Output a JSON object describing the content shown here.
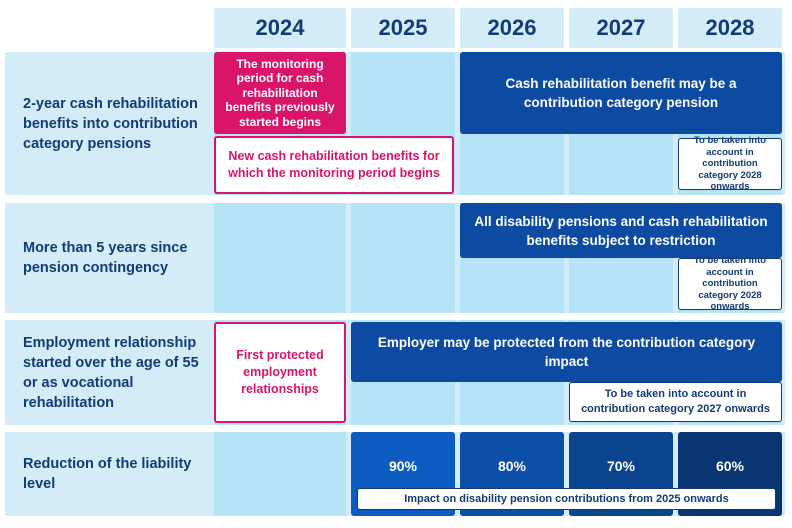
{
  "years": [
    "2024",
    "2025",
    "2026",
    "2027",
    "2028"
  ],
  "rows": [
    {
      "label": "2-year cash rehabilitation benefits into contribution category pensions",
      "items": {
        "magenta_fill": "The monitoring period for cash rehabilitation benefits previously started begins",
        "magenta_outline": "New cash rehabilitation benefits for which the monitoring period begins",
        "navy": "Cash rehabilitation benefit may be a contribution category pension",
        "note": "To be taken into account in contribution category 2028 onwards"
      }
    },
    {
      "label": "More than 5 years since pension contingency",
      "items": {
        "navy": "All disability pensions and cash rehabilitation benefits subject to restriction",
        "note": "To be taken into account in contribution category 2028 onwards"
      }
    },
    {
      "label": "Employment relationship started over the age of 55 or as vocational rehabilitation",
      "items": {
        "magenta_outline": "First protected employment relationships",
        "navy": "Employer may be protected from the contribution category impact",
        "note": "To be taken into account in contribution category 2027 onwards"
      }
    },
    {
      "label": "Reduction of the liability level",
      "levels": [
        {
          "year": "2025",
          "value": "90%",
          "color": "#0d5cc2"
        },
        {
          "year": "2026",
          "value": "80%",
          "color": "#0c4fa8"
        },
        {
          "year": "2027",
          "value": "70%",
          "color": "#0b4590"
        },
        {
          "year": "2028",
          "value": "60%",
          "color": "#0a3573"
        }
      ],
      "note": "Impact on disability pension contributions from 2025 onwards"
    }
  ],
  "colors": {
    "navy": "#0d4aa1",
    "magenta": "#d9156b",
    "light_blue": "#d3ecf8",
    "mid_blue": "#b7e3f7",
    "text_dark": "#123b78"
  }
}
